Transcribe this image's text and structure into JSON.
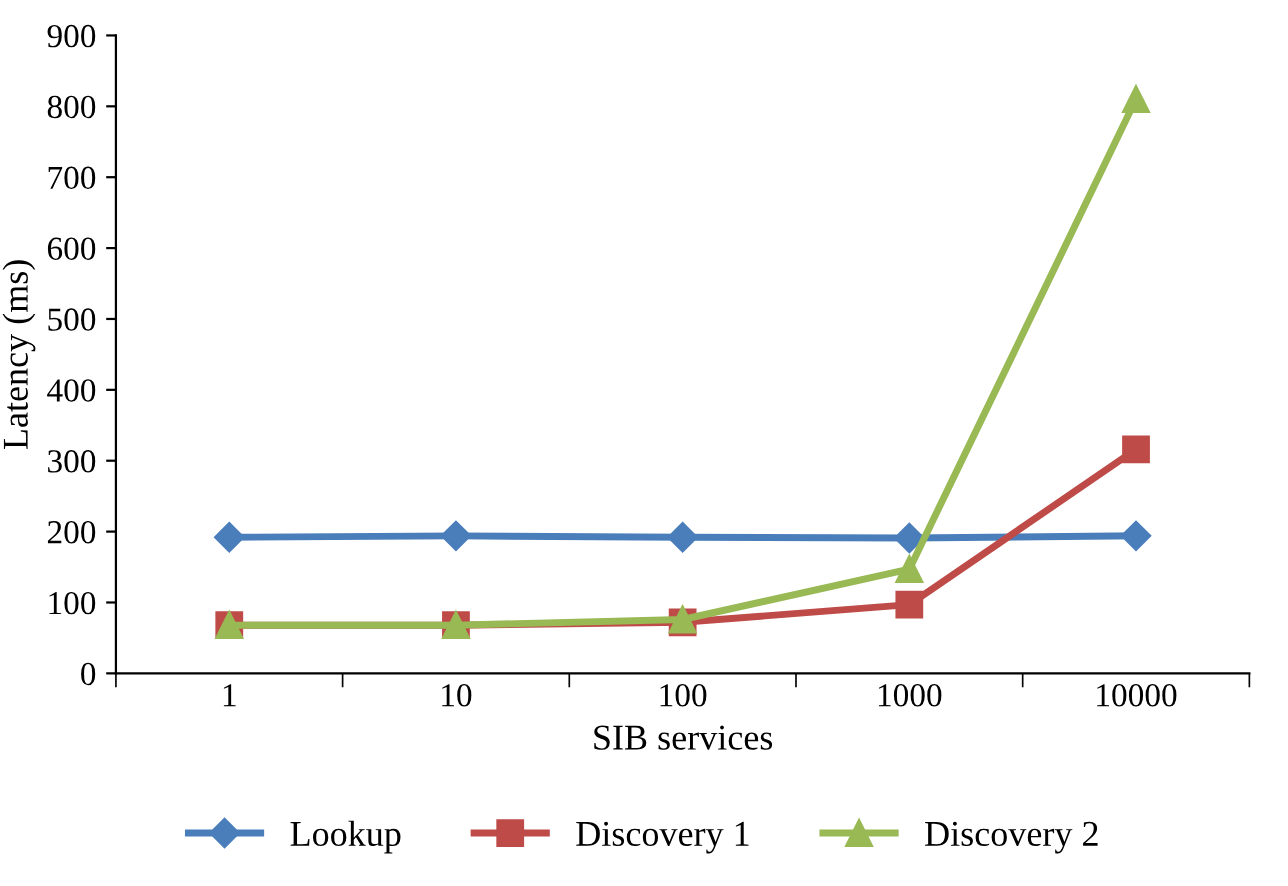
{
  "chart_data": {
    "type": "line",
    "xlabel": "SIB services",
    "ylabel": "Latency (ms)",
    "categories": [
      "1",
      "10",
      "100",
      "1000",
      "10000"
    ],
    "series": [
      {
        "name": "Lookup",
        "color": "#4a7ebb",
        "marker": "diamond",
        "values": [
          192,
          194,
          192,
          191,
          194
        ]
      },
      {
        "name": "Discovery 1",
        "color": "#be4b48",
        "marker": "square",
        "values": [
          68,
          68,
          72,
          97,
          316
        ]
      },
      {
        "name": "Discovery 2",
        "color": "#98b954",
        "marker": "triangle",
        "values": [
          68,
          68,
          76,
          147,
          810
        ]
      }
    ],
    "ylim": [
      0,
      900
    ],
    "yticks": [
      0,
      100,
      200,
      300,
      400,
      500,
      600,
      700,
      800,
      900
    ],
    "grid": false,
    "legend": "bottom"
  }
}
